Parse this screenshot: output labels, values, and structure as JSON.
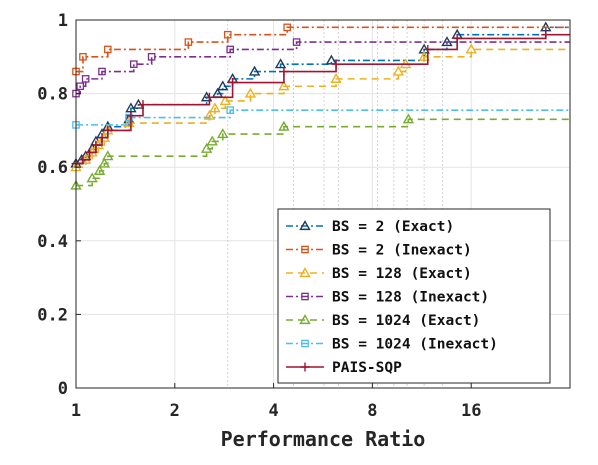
{
  "chart_data": {
    "type": "line",
    "title": "",
    "xlabel": "Performance Ratio",
    "ylabel": "",
    "x_scale": "log2",
    "xlim": [
      1,
      32
    ],
    "ylim": [
      0,
      1
    ],
    "x_ticks": [
      1,
      2,
      4,
      8,
      16
    ],
    "x_tick_labels": [
      "1",
      "2",
      "4",
      "8",
      "16"
    ],
    "y_ticks": [
      0,
      0.2,
      0.4,
      0.6,
      0.8,
      1
    ],
    "y_tick_labels": [
      "0",
      "0.2",
      "0.4",
      "0.6",
      "0.8",
      "1"
    ],
    "extra_x_grid": [
      2.9,
      4.6,
      5.7,
      6.3,
      8.3,
      9.3,
      10.2,
      11.5,
      13.1
    ],
    "grid": true,
    "legend_position": "bottom-right",
    "series": [
      {
        "name": "BS = 2 (Exact)",
        "color": "#0072BD",
        "marker_color": "#1f3a5e",
        "marker": "triangle",
        "dash": "dashdot",
        "points": [
          [
            1.0,
            0.61
          ],
          [
            1.04,
            0.62
          ],
          [
            1.07,
            0.63
          ],
          [
            1.12,
            0.65
          ],
          [
            1.15,
            0.67
          ],
          [
            1.2,
            0.69
          ],
          [
            1.25,
            0.71
          ],
          [
            1.45,
            0.73
          ],
          [
            1.47,
            0.76
          ],
          [
            1.55,
            0.77
          ],
          [
            2.5,
            0.79
          ],
          [
            2.7,
            0.8
          ],
          [
            2.8,
            0.82
          ],
          [
            3.0,
            0.84
          ],
          [
            3.5,
            0.86
          ],
          [
            4.2,
            0.88
          ],
          [
            6.0,
            0.89
          ],
          [
            11.5,
            0.92
          ],
          [
            13.5,
            0.94
          ],
          [
            14.5,
            0.96
          ],
          [
            27.0,
            0.98
          ]
        ]
      },
      {
        "name": "BS = 2 (Inexact)",
        "color": "#D95319",
        "marker_color": "#D95319",
        "marker": "square",
        "dash": "dashdot",
        "points": [
          [
            1.0,
            0.86
          ],
          [
            1.05,
            0.9
          ],
          [
            1.25,
            0.92
          ],
          [
            2.2,
            0.94
          ],
          [
            2.9,
            0.96
          ],
          [
            4.4,
            0.98
          ]
        ]
      },
      {
        "name": "BS = 128 (Exact)",
        "color": "#EDB120",
        "marker_color": "#EDB120",
        "marker": "triangle",
        "dash": "dashed",
        "points": [
          [
            1.0,
            0.6
          ],
          [
            1.07,
            0.62
          ],
          [
            1.12,
            0.64
          ],
          [
            1.17,
            0.66
          ],
          [
            1.22,
            0.68
          ],
          [
            1.25,
            0.7
          ],
          [
            1.45,
            0.72
          ],
          [
            2.55,
            0.74
          ],
          [
            2.65,
            0.76
          ],
          [
            2.85,
            0.78
          ],
          [
            3.4,
            0.8
          ],
          [
            4.3,
            0.82
          ],
          [
            6.2,
            0.84
          ],
          [
            9.6,
            0.86
          ],
          [
            10.1,
            0.88
          ],
          [
            11.5,
            0.9
          ],
          [
            16.0,
            0.92
          ]
        ]
      },
      {
        "name": "BS = 128 (Inexact)",
        "color": "#7E2F8E",
        "marker_color": "#7E2F8E",
        "marker": "square",
        "dash": "dashdot",
        "points": [
          [
            1.0,
            0.8
          ],
          [
            1.03,
            0.82
          ],
          [
            1.07,
            0.84
          ],
          [
            1.2,
            0.86
          ],
          [
            1.5,
            0.88
          ],
          [
            1.7,
            0.9
          ],
          [
            2.95,
            0.92
          ],
          [
            4.7,
            0.94
          ]
        ]
      },
      {
        "name": "BS = 1024 (Exact)",
        "color": "#77AC30",
        "marker_color": "#77AC30",
        "marker": "triangle",
        "dash": "dashed",
        "points": [
          [
            1.0,
            0.55
          ],
          [
            1.12,
            0.57
          ],
          [
            1.18,
            0.59
          ],
          [
            1.22,
            0.61
          ],
          [
            1.25,
            0.63
          ],
          [
            2.5,
            0.65
          ],
          [
            2.6,
            0.67
          ],
          [
            2.8,
            0.69
          ],
          [
            4.3,
            0.71
          ],
          [
            10.3,
            0.73
          ]
        ]
      },
      {
        "name": "BS = 1024 (Inexact)",
        "color": "#4DBEEE",
        "marker_color": "#4DBEEE",
        "marker": "square",
        "dash": "dashdot",
        "points": [
          [
            1.0,
            0.715
          ],
          [
            1.45,
            0.735
          ],
          [
            2.95,
            0.755
          ]
        ]
      },
      {
        "name": "PAIS-SQP",
        "color": "#A2142F",
        "marker_color": "#A2142F",
        "marker": "plus",
        "dash": "solid",
        "points": [
          [
            1.0,
            0.61
          ],
          [
            1.05,
            0.62
          ],
          [
            1.1,
            0.64
          ],
          [
            1.15,
            0.66
          ],
          [
            1.2,
            0.68
          ],
          [
            1.25,
            0.7
          ],
          [
            1.47,
            0.74
          ],
          [
            1.6,
            0.77
          ],
          [
            2.55,
            0.79
          ],
          [
            3.0,
            0.83
          ],
          [
            4.3,
            0.86
          ],
          [
            6.2,
            0.88
          ],
          [
            11.8,
            0.92
          ],
          [
            14.5,
            0.95
          ],
          [
            27.0,
            0.96
          ]
        ]
      }
    ]
  }
}
